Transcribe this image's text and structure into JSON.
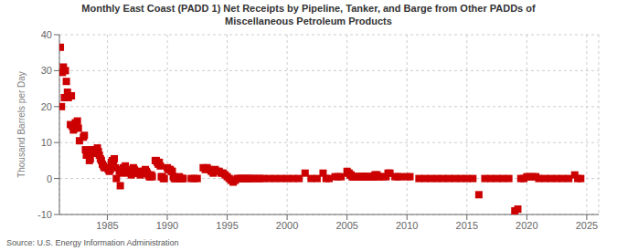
{
  "chart_data": {
    "type": "scatter",
    "title": "Monthly East Coast (PADD 1) Net Receipts by Pipeline, Tanker, and Barge from Other PADDs of\nMiscellaneous Petroleum Products",
    "ylabel": "Thousand Barrels per Day",
    "annotations": [
      "Source: U.S. Energy Information Administration"
    ],
    "color": "#CC0000",
    "marker": "square",
    "grid": true,
    "xlim": [
      1981.0,
      2026.0
    ],
    "ylim": [
      -10,
      40
    ],
    "xticks": [
      1985,
      1990,
      1995,
      2000,
      2005,
      2010,
      2015,
      2020,
      2025
    ],
    "yticks": [
      -10,
      0,
      10,
      20,
      30,
      40
    ],
    "x": [
      1981.08,
      1981.17,
      1981.25,
      1981.33,
      1981.42,
      1981.5,
      1981.58,
      1981.67,
      1981.75,
      1981.83,
      1981.92,
      1982.0,
      1982.08,
      1982.17,
      1982.25,
      1982.33,
      1982.42,
      1982.5,
      1982.58,
      1982.67,
      1983.0,
      1983.08,
      1983.17,
      1983.25,
      1983.33,
      1983.42,
      1983.5,
      1983.58,
      1983.67,
      1983.75,
      1984.0,
      1984.08,
      1984.17,
      1984.25,
      1984.33,
      1984.42,
      1984.5,
      1984.58,
      1984.67,
      1984.75,
      1985.0,
      1985.08,
      1985.17,
      1985.25,
      1985.33,
      1985.42,
      1985.5,
      1985.58,
      1985.67,
      1985.75,
      1986.0,
      1986.08,
      1986.17,
      1986.25,
      1986.33,
      1986.42,
      1986.5,
      1986.58,
      1986.67,
      1986.75,
      1987.0,
      1987.08,
      1987.17,
      1987.25,
      1987.33,
      1987.42,
      1987.5,
      1987.58,
      1987.67,
      1987.75,
      1988.0,
      1988.08,
      1988.17,
      1988.25,
      1988.33,
      1988.42,
      1988.5,
      1988.58,
      1988.67,
      1988.75,
      1989.0,
      1989.08,
      1989.17,
      1989.25,
      1989.33,
      1989.42,
      1989.5,
      1989.58,
      1989.67,
      1989.75,
      1990.0,
      1990.08,
      1990.17,
      1990.25,
      1990.33,
      1990.42,
      1990.5,
      1990.58,
      1990.67,
      1990.75,
      1991.0,
      1991.08,
      1991.17,
      1991.25,
      1991.33,
      1992.0,
      1992.25,
      1992.5,
      1993.0,
      1993.17,
      1993.33,
      1993.5,
      1993.67,
      1993.83,
      1994.0,
      1994.17,
      1994.33,
      1994.5,
      1994.67,
      1994.83,
      1995.0,
      1995.17,
      1995.33,
      1995.5,
      1995.67,
      1995.83,
      1996.0,
      1996.17,
      1996.33,
      1996.5,
      1996.67,
      1996.83,
      1997.0,
      1997.25,
      1997.5,
      1997.75,
      1998.0,
      1998.5,
      1999.0,
      1999.5,
      2000.0,
      2000.5,
      2001.0,
      2001.5,
      2002.0,
      2002.5,
      2003.0,
      2003.25,
      2003.5,
      2004.0,
      2004.25,
      2004.5,
      2005.0,
      2005.08,
      2005.17,
      2005.25,
      2005.33,
      2005.42,
      2005.5,
      2005.58,
      2005.67,
      2005.75,
      2006.0,
      2006.08,
      2006.17,
      2006.25,
      2006.33,
      2006.42,
      2006.5,
      2006.58,
      2006.67,
      2006.75,
      2007.0,
      2007.08,
      2007.17,
      2007.25,
      2007.33,
      2007.42,
      2007.5,
      2007.58,
      2007.67,
      2008.0,
      2008.25,
      2008.42,
      2008.58,
      2009.0,
      2009.25,
      2009.5,
      2010.0,
      2010.25,
      2011.0,
      2011.5,
      2012.0,
      2012.5,
      2013.0,
      2013.5,
      2014.0,
      2014.5,
      2015.0,
      2015.5,
      2016.0,
      2016.5,
      2017.0,
      2017.5,
      2018.0,
      2018.5,
      2019.0,
      2019.25,
      2019.5,
      2019.75,
      2020.0,
      2020.25,
      2020.5,
      2020.75,
      2021.0,
      2021.5,
      2022.0,
      2022.5,
      2023.0,
      2023.5,
      2024.0,
      2024.25,
      2024.5
    ],
    "values": [
      36.5,
      20.0,
      29.5,
      31.0,
      22.5,
      30.0,
      27.0,
      24.0,
      22.5,
      23.0,
      15.0,
      23.0,
      14.5,
      13.5,
      14.0,
      15.5,
      15.0,
      16.0,
      14.0,
      10.5,
      11.5,
      12.0,
      8.0,
      6.5,
      7.5,
      7.0,
      5.0,
      5.5,
      8.0,
      7.5,
      8.0,
      7.0,
      8.5,
      7.5,
      6.5,
      5.5,
      5.0,
      4.0,
      3.5,
      3.0,
      3.0,
      2.5,
      2.0,
      2.5,
      4.5,
      5.0,
      4.5,
      5.5,
      3.0,
      0.0,
      2.0,
      -2.0,
      1.5,
      2.5,
      3.0,
      2.0,
      3.5,
      2.0,
      2.5,
      1.5,
      1.0,
      2.0,
      3.0,
      2.5,
      2.0,
      1.5,
      1.5,
      2.0,
      1.5,
      1.0,
      2.0,
      1.5,
      2.5,
      2.0,
      1.5,
      1.0,
      0.5,
      0.5,
      1.0,
      0.5,
      5.0,
      5.0,
      4.5,
      4.0,
      4.5,
      3.5,
      0.5,
      0.5,
      0.0,
      0.0,
      3.0,
      2.5,
      2.5,
      2.5,
      2.0,
      2.0,
      0.5,
      0.0,
      0.0,
      0.0,
      0.5,
      0.0,
      0.0,
      0.0,
      0.0,
      0.0,
      0.0,
      0.0,
      3.0,
      2.5,
      3.0,
      2.5,
      2.0,
      1.5,
      2.5,
      2.0,
      2.0,
      1.5,
      1.5,
      1.0,
      0.5,
      0.0,
      -0.5,
      -1.0,
      -0.5,
      0.0,
      0.0,
      0.0,
      0.0,
      0.0,
      0.0,
      0.0,
      0.0,
      0.0,
      0.0,
      0.0,
      0.0,
      0.0,
      0.0,
      0.0,
      0.0,
      0.0,
      0.0,
      1.5,
      0.0,
      0.0,
      1.5,
      0.0,
      0.0,
      0.5,
      0.5,
      0.5,
      2.0,
      1.5,
      1.5,
      1.0,
      1.0,
      0.5,
      0.5,
      0.5,
      0.5,
      0.5,
      0.5,
      0.5,
      0.5,
      0.5,
      0.5,
      0.5,
      0.5,
      0.5,
      0.5,
      0.5,
      0.5,
      0.5,
      0.5,
      0.5,
      1.0,
      1.0,
      1.0,
      0.5,
      0.5,
      0.5,
      0.5,
      1.5,
      1.5,
      0.5,
      0.5,
      0.5,
      0.5,
      0.5,
      0.0,
      0.0,
      0.0,
      0.0,
      0.0,
      0.0,
      0.0,
      0.0,
      0.0,
      0.0,
      -4.5,
      0.0,
      0.0,
      0.0,
      0.0,
      0.0,
      -9.0,
      -8.5,
      0.0,
      0.0,
      0.5,
      0.5,
      0.5,
      0.5,
      0.0,
      0.0,
      0.0,
      0.0,
      0.0,
      0.0,
      1.0,
      0.0,
      0.0
    ]
  }
}
